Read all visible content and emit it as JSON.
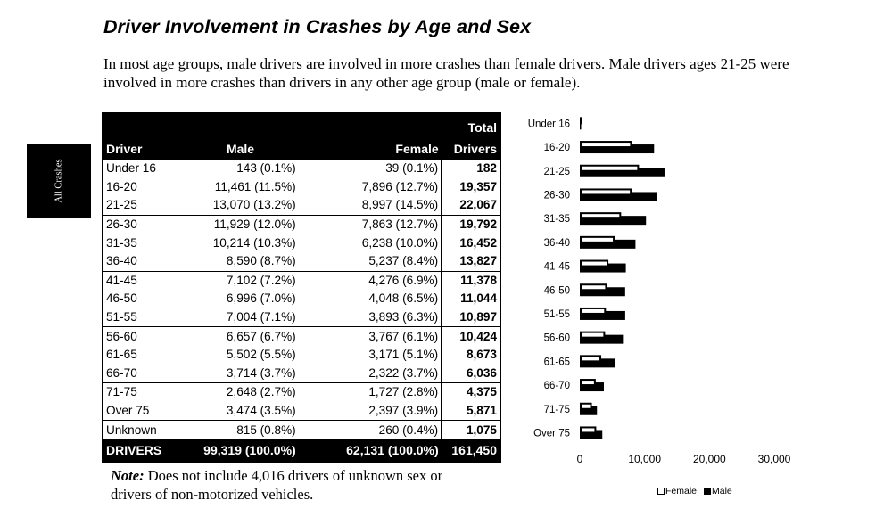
{
  "title": "Driver Involvement in Crashes by Age and Sex",
  "intro": "In most age groups, male drivers are involved in more crashes than female drivers.  Male drivers ages 21-25 were involved in more crashes than drivers in any other age group (male or female).",
  "side_tab": "All Crashes",
  "table": {
    "headers": {
      "age": "Driver",
      "male": "Male",
      "female": "Female",
      "total_line1": "Total",
      "total_line2": "Drivers"
    },
    "rows": [
      {
        "age": "Under 16",
        "male": "143 (0.1%)",
        "female": "39 (0.1%)",
        "total": "182"
      },
      {
        "age": "16-20",
        "male": "11,461 (11.5%)",
        "female": "7,896 (12.7%)",
        "total": "19,357"
      },
      {
        "age": "21-25",
        "male": "13,070 (13.2%)",
        "female": "8,997 (14.5%)",
        "total": "22,067"
      },
      {
        "age": "26-30",
        "male": "11,929 (12.0%)",
        "female": "7,863 (12.7%)",
        "total": "19,792"
      },
      {
        "age": "31-35",
        "male": "10,214 (10.3%)",
        "female": "6,238 (10.0%)",
        "total": "16,452"
      },
      {
        "age": "36-40",
        "male": "8,590 (8.7%)",
        "female": "5,237 (8.4%)",
        "total": "13,827"
      },
      {
        "age": "41-45",
        "male": "7,102 (7.2%)",
        "female": "4,276 (6.9%)",
        "total": "11,378"
      },
      {
        "age": "46-50",
        "male": "6,996 (7.0%)",
        "female": "4,048 (6.5%)",
        "total": "11,044"
      },
      {
        "age": "51-55",
        "male": "7,004 (7.1%)",
        "female": "3,893 (6.3%)",
        "total": "10,897"
      },
      {
        "age": "56-60",
        "male": "6,657 (6.7%)",
        "female": "3,767 (6.1%)",
        "total": "10,424"
      },
      {
        "age": "61-65",
        "male": "5,502 (5.5%)",
        "female": "3,171 (5.1%)",
        "total": "8,673"
      },
      {
        "age": "66-70",
        "male": "3,714 (3.7%)",
        "female": "2,322 (3.7%)",
        "total": "6,036"
      },
      {
        "age": "71-75",
        "male": "2,648 (2.7%)",
        "female": "1,727 (2.8%)",
        "total": "4,375"
      },
      {
        "age": "Over 75",
        "male": "3,474 (3.5%)",
        "female": "2,397 (3.9%)",
        "total": "5,871"
      },
      {
        "age": "Unknown",
        "male": "815 (0.8%)",
        "female": "260 (0.4%)",
        "total": "1,075"
      }
    ],
    "total_row": {
      "age": "DRIVERS",
      "male": "99,319 (100.0%)",
      "female": "62,131 (100.0%)",
      "total": "161,450"
    }
  },
  "note": {
    "label": "Note:",
    "text": " Does not include 4,016 drivers of unknown sex or",
    "text2": "drivers of non-motorized vehicles."
  },
  "chart_data": {
    "type": "bar",
    "orientation": "horizontal",
    "categories": [
      "Under 16",
      "16-20",
      "21-25",
      "26-30",
      "31-35",
      "36-40",
      "41-45",
      "46-50",
      "51-55",
      "56-60",
      "61-65",
      "66-70",
      "71-75",
      "Over 75"
    ],
    "series": [
      {
        "name": "Female",
        "color": "#ffffff",
        "values": [
          39,
          7896,
          8997,
          7863,
          6238,
          5237,
          4276,
          4048,
          3893,
          3767,
          3171,
          2322,
          1727,
          2397
        ]
      },
      {
        "name": "Male",
        "color": "#000000",
        "values": [
          143,
          11461,
          13070,
          11929,
          10214,
          8590,
          7102,
          6996,
          7004,
          6657,
          5502,
          3714,
          2648,
          3474
        ]
      }
    ],
    "x_ticks": [
      "0",
      "10,000",
      "20,000",
      "30,000"
    ],
    "xlim": [
      0,
      30000
    ],
    "legend_position": "bottom-right",
    "grid": false
  }
}
